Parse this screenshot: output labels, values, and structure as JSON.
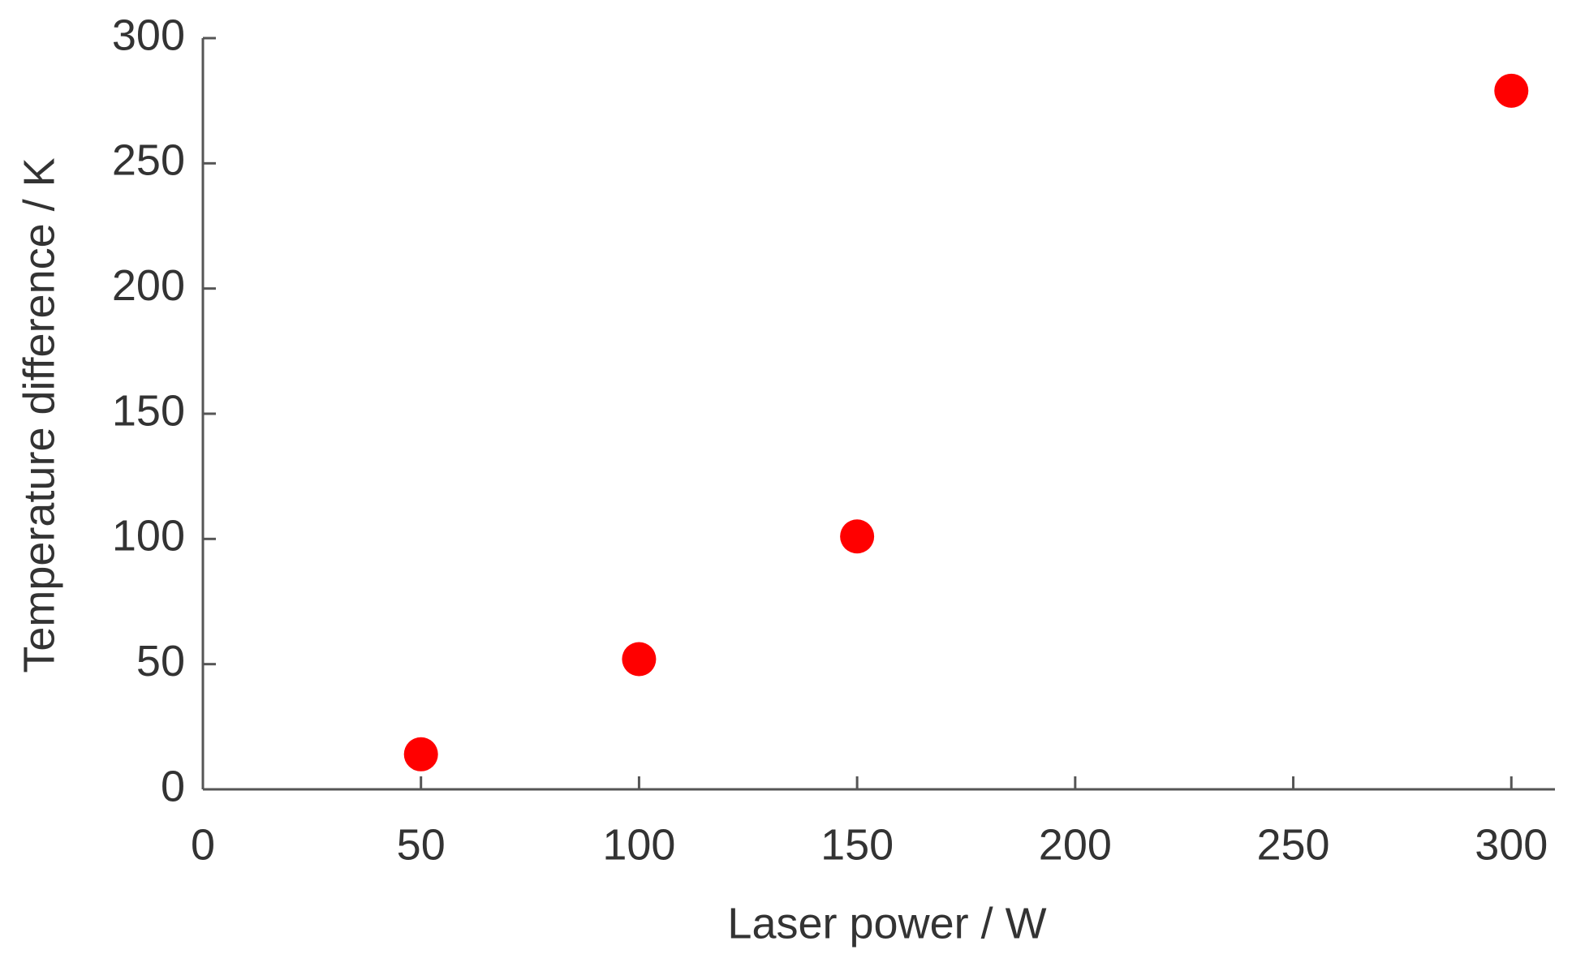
{
  "chart_data": {
    "type": "scatter",
    "x_label": "Laser power / W",
    "y_label": "Temperature difference / K",
    "x": [
      50,
      100,
      150,
      300
    ],
    "values": [
      14,
      52,
      101,
      279
    ],
    "color": "#ff0000",
    "xlim": [
      0,
      310
    ],
    "xticks": [
      0,
      50,
      100,
      150,
      200,
      250,
      300
    ],
    "ylim": [
      0,
      300
    ],
    "yticks": [
      0,
      50,
      100,
      150,
      200,
      250,
      300
    ],
    "grid": false
  }
}
